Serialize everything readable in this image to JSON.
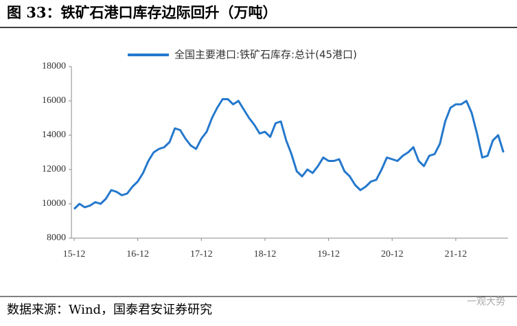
{
  "chart_data": {
    "type": "line",
    "title": "图 33：铁矿石港口库存边际回升（万吨）",
    "source": "数据来源：Wind，国泰君安证券研究",
    "watermark": "一观大势",
    "categories": [
      "15-12",
      null,
      null,
      null,
      null,
      null,
      null,
      null,
      null,
      null,
      null,
      null,
      "16-12",
      null,
      null,
      null,
      null,
      null,
      null,
      null,
      null,
      null,
      null,
      null,
      "17-12",
      null,
      null,
      null,
      null,
      null,
      null,
      null,
      null,
      null,
      null,
      null,
      "18-12",
      null,
      null,
      null,
      null,
      null,
      null,
      null,
      null,
      null,
      null,
      null,
      "19-12",
      null,
      null,
      null,
      null,
      null,
      null,
      null,
      null,
      null,
      null,
      null,
      "20-12",
      null,
      null,
      null,
      null,
      null,
      null,
      null,
      null,
      null,
      null,
      null,
      "21-12",
      null,
      null,
      null,
      null,
      null,
      null,
      null,
      null,
      null
    ],
    "series": [
      {
        "name": "全国主要港口:铁矿石库存:总计(45港口)",
        "color": "#2478cc",
        "values": [
          9700,
          10000,
          9800,
          9900,
          10100,
          10000,
          10300,
          10800,
          10700,
          10500,
          10600,
          11000,
          11300,
          11800,
          12500,
          13000,
          13200,
          13300,
          13600,
          14400,
          14300,
          13800,
          13400,
          13200,
          13800,
          14200,
          15000,
          15600,
          16100,
          16100,
          15800,
          16000,
          15500,
          15000,
          14600,
          14100,
          14200,
          13900,
          14700,
          14800,
          13700,
          12900,
          11900,
          11600,
          12000,
          11800,
          12200,
          12700,
          12500,
          12500,
          12600,
          11900,
          11600,
          11100,
          10800,
          11000,
          11300,
          11400,
          12000,
          12700,
          12600,
          12500,
          12800,
          13000,
          13300,
          12500,
          12200,
          12800,
          12900,
          13500,
          14800,
          15600,
          15800,
          15800,
          16000,
          15300,
          14100,
          12700,
          12800,
          13700,
          14000,
          13000
        ]
      }
    ],
    "ylim": [
      8000,
      18000
    ],
    "yticks": [
      8000,
      10000,
      12000,
      14000,
      16000,
      18000
    ],
    "legend": "top",
    "grid": false
  }
}
